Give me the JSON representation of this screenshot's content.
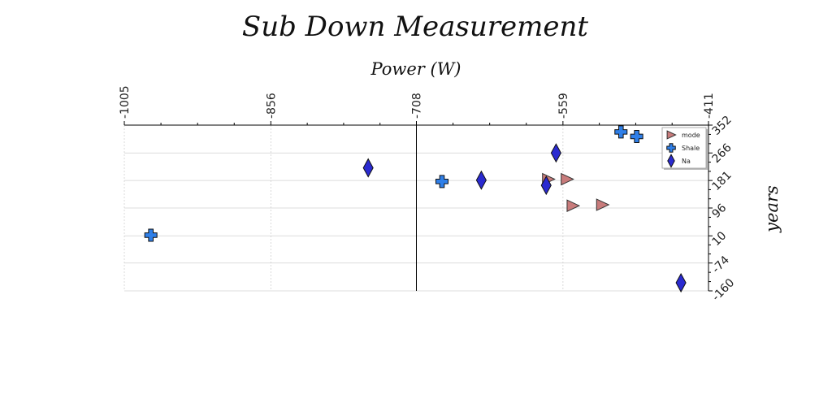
{
  "chart_data": {
    "type": "scatter",
    "title": "Sub Down Measurement",
    "xlabel": "Power (W)",
    "ylabel": "years",
    "xlim": [
      -1005,
      -411
    ],
    "ylim": [
      -160,
      352
    ],
    "xticks": [
      -1005,
      -856,
      -708,
      -559,
      -411
    ],
    "yticks": [
      352,
      266,
      181,
      96,
      10,
      -74,
      -160
    ],
    "xaxis_position": "top",
    "yaxis_position": "right",
    "x_zero_line": -708,
    "grid": true,
    "legend_position": "top-right",
    "series": [
      {
        "name": "mode",
        "marker": "triangle-right",
        "color": "#c87b7b",
        "points": [
          {
            "x": -574,
            "y": 185
          },
          {
            "x": -555,
            "y": 185
          },
          {
            "x": -549,
            "y": 103
          },
          {
            "x": -519,
            "y": 106
          }
        ]
      },
      {
        "name": "Shale",
        "marker": "plus",
        "color": "#2f7fe8",
        "points": [
          {
            "x": -978,
            "y": 12
          },
          {
            "x": -682,
            "y": 178
          },
          {
            "x": -500,
            "y": 331
          },
          {
            "x": -484,
            "y": 317
          }
        ]
      },
      {
        "name": "Na",
        "marker": "diamond",
        "color": "#2a2ad0",
        "points": [
          {
            "x": -757,
            "y": 220
          },
          {
            "x": -642,
            "y": 182
          },
          {
            "x": -576,
            "y": 166
          },
          {
            "x": -566,
            "y": 266
          },
          {
            "x": -439,
            "y": -135
          }
        ]
      }
    ]
  }
}
